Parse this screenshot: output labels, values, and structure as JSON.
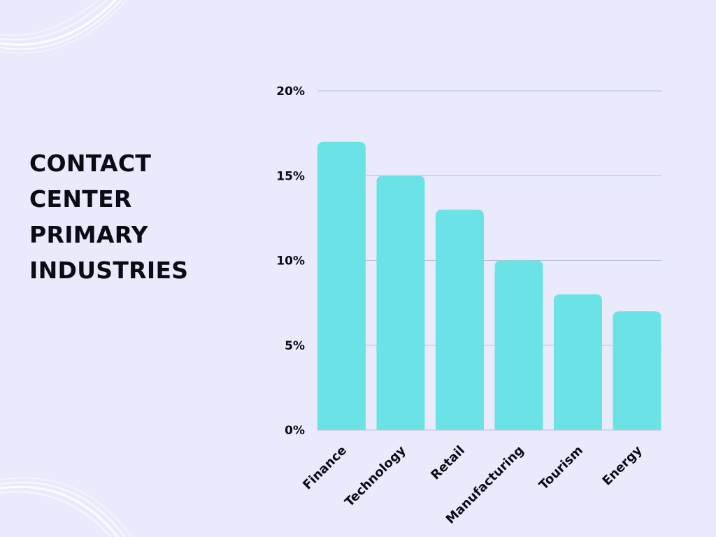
{
  "title_lines": [
    "CONTACT",
    "CENTER",
    "PRIMARY",
    "INDUSTRIES"
  ],
  "colors": {
    "background": "#e9ebfd",
    "bar": "#6be3e6",
    "grid": "#b9bdd6",
    "text": "#0b0b14"
  },
  "chart_data": {
    "type": "bar",
    "title": "CONTACT CENTER PRIMARY INDUSTRIES",
    "xlabel": "",
    "ylabel": "",
    "categories": [
      "Finance",
      "Technology",
      "Retail",
      "Manufacturing",
      "Tourism",
      "Energy"
    ],
    "values": [
      17,
      15,
      13,
      10,
      8,
      7
    ],
    "ylim": [
      0,
      20
    ],
    "yticks": [
      0,
      5,
      10,
      15,
      20
    ],
    "ytick_labels": [
      "0%",
      "5%",
      "10%",
      "15%",
      "20%"
    ],
    "value_format": "percent",
    "grid": true,
    "legend": "none"
  }
}
